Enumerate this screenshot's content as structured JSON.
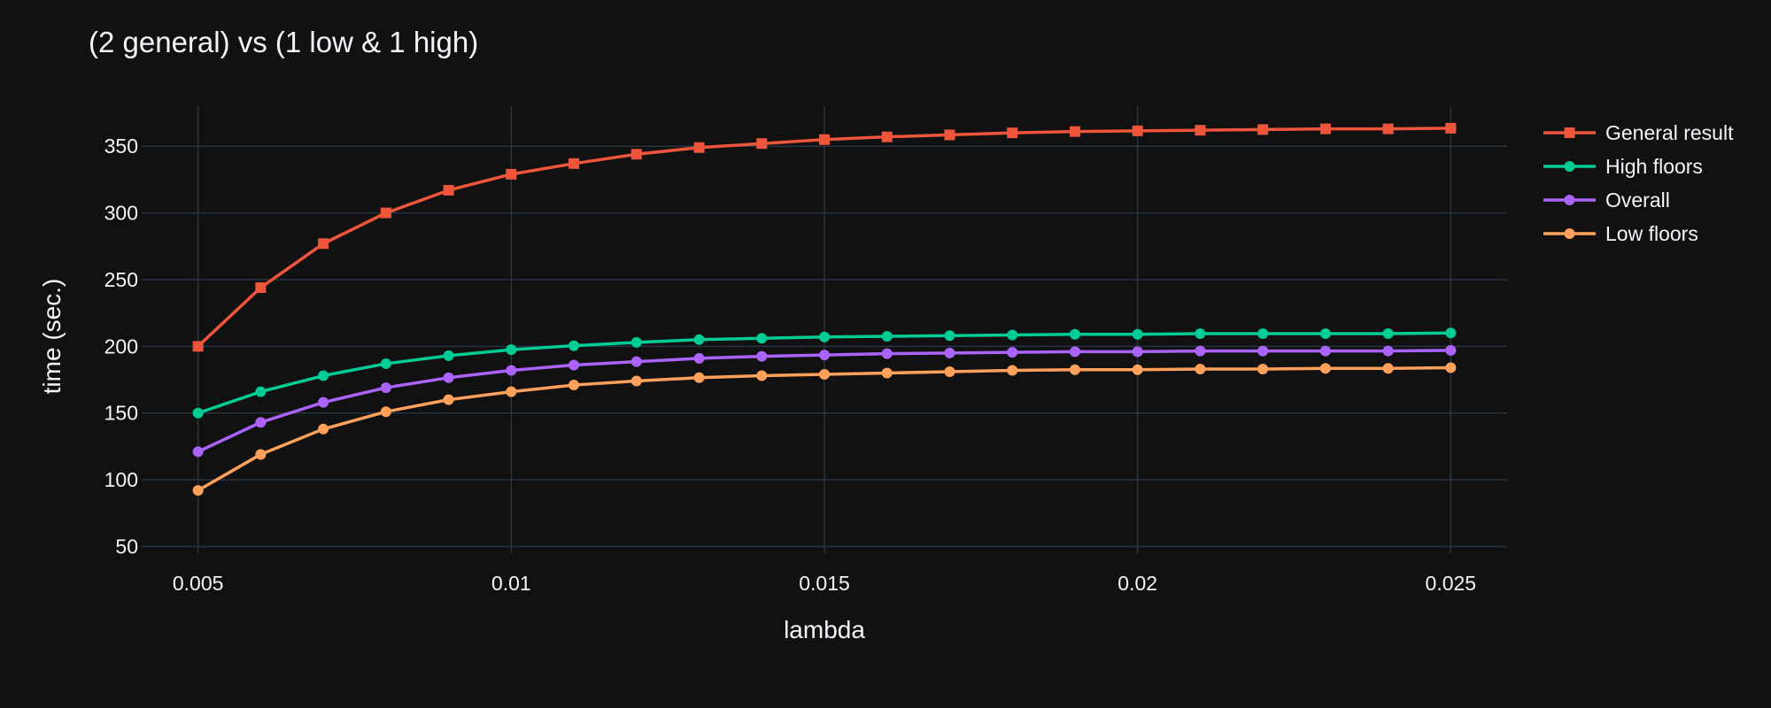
{
  "chart_data": {
    "type": "line",
    "title": "(2 general) vs (1 low & 1 high)",
    "xlabel": "lambda",
    "ylabel": "time (sec.)",
    "xlim": [
      0.0041,
      0.0259
    ],
    "ylim": [
      45,
      380
    ],
    "x_ticks": [
      {
        "value": 0.005,
        "label": "0.005"
      },
      {
        "value": 0.01,
        "label": "0.01"
      },
      {
        "value": 0.015,
        "label": "0.015"
      },
      {
        "value": 0.02,
        "label": "0.02"
      },
      {
        "value": 0.025,
        "label": "0.025"
      }
    ],
    "y_ticks": [
      {
        "value": 50,
        "label": "50"
      },
      {
        "value": 100,
        "label": "100"
      },
      {
        "value": 150,
        "label": "150"
      },
      {
        "value": 200,
        "label": "200"
      },
      {
        "value": 250,
        "label": "250"
      },
      {
        "value": 300,
        "label": "300"
      },
      {
        "value": 350,
        "label": "350"
      }
    ],
    "grid": true,
    "legend_position": "top-right",
    "x": [
      0.005,
      0.006,
      0.007,
      0.008,
      0.009,
      0.01,
      0.011,
      0.012,
      0.013,
      0.014,
      0.015,
      0.016,
      0.017,
      0.018,
      0.019,
      0.02,
      0.021,
      0.022,
      0.023,
      0.024,
      0.025
    ],
    "series": [
      {
        "name": "General result",
        "color": "#ef553b",
        "marker": "square",
        "values": [
          200,
          244,
          277,
          300,
          317,
          329,
          337,
          344,
          349,
          352,
          355,
          357,
          358.5,
          360,
          361,
          361.5,
          362,
          362.5,
          363,
          363,
          363.5
        ]
      },
      {
        "name": "High floors",
        "color": "#00cc96",
        "marker": "circle",
        "values": [
          150,
          166,
          178,
          187,
          193,
          197.5,
          200.5,
          203,
          205,
          206,
          207,
          207.5,
          208,
          208.5,
          209,
          209,
          209.5,
          209.5,
          209.5,
          209.5,
          210
        ]
      },
      {
        "name": "Overall",
        "color": "#ab63fa",
        "marker": "circle",
        "values": [
          121,
          143,
          158,
          169,
          176.5,
          182,
          186,
          188.5,
          191,
          192.5,
          193.5,
          194.5,
          195,
          195.5,
          196,
          196,
          196.5,
          196.5,
          196.5,
          196.5,
          197
        ]
      },
      {
        "name": "Low floors",
        "color": "#ffa15a",
        "marker": "circle",
        "values": [
          92,
          119,
          138,
          151,
          160,
          166,
          171,
          174,
          176.5,
          178,
          179,
          180,
          181,
          182,
          182.5,
          182.5,
          183,
          183,
          183.5,
          183.5,
          184
        ]
      }
    ]
  }
}
